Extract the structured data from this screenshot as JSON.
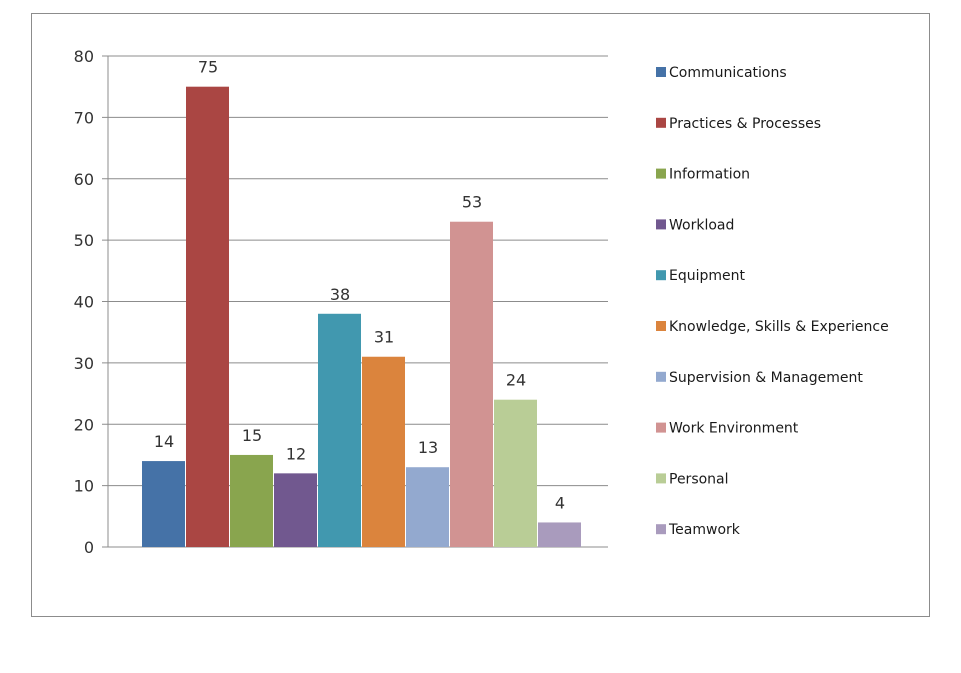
{
  "chart_data": {
    "type": "bar",
    "title": "",
    "xlabel": "",
    "ylabel": "",
    "ylim": [
      0,
      80
    ],
    "yticks": [
      0,
      10,
      20,
      30,
      40,
      50,
      60,
      70,
      80
    ],
    "grid": true,
    "legend_position": "right",
    "series": [
      {
        "name": "Communications",
        "value": 14,
        "color": "#4572A7"
      },
      {
        "name": "Practices & Processes",
        "value": 75,
        "color": "#AA4643"
      },
      {
        "name": "Information",
        "value": 15,
        "color": "#89A54E"
      },
      {
        "name": "Workload",
        "value": 12,
        "color": "#71588F"
      },
      {
        "name": "Equipment",
        "value": 38,
        "color": "#4198AF"
      },
      {
        "name": "Knowledge, Skills & Experience",
        "value": 31,
        "color": "#DB843D"
      },
      {
        "name": "Supervision & Management",
        "value": 13,
        "color": "#93A9CF"
      },
      {
        "name": "Work Environment",
        "value": 53,
        "color": "#D19392"
      },
      {
        "name": "Personal",
        "value": 24,
        "color": "#B9CD96"
      },
      {
        "name": "Teamwork",
        "value": 4,
        "color": "#A99BBD"
      }
    ]
  }
}
